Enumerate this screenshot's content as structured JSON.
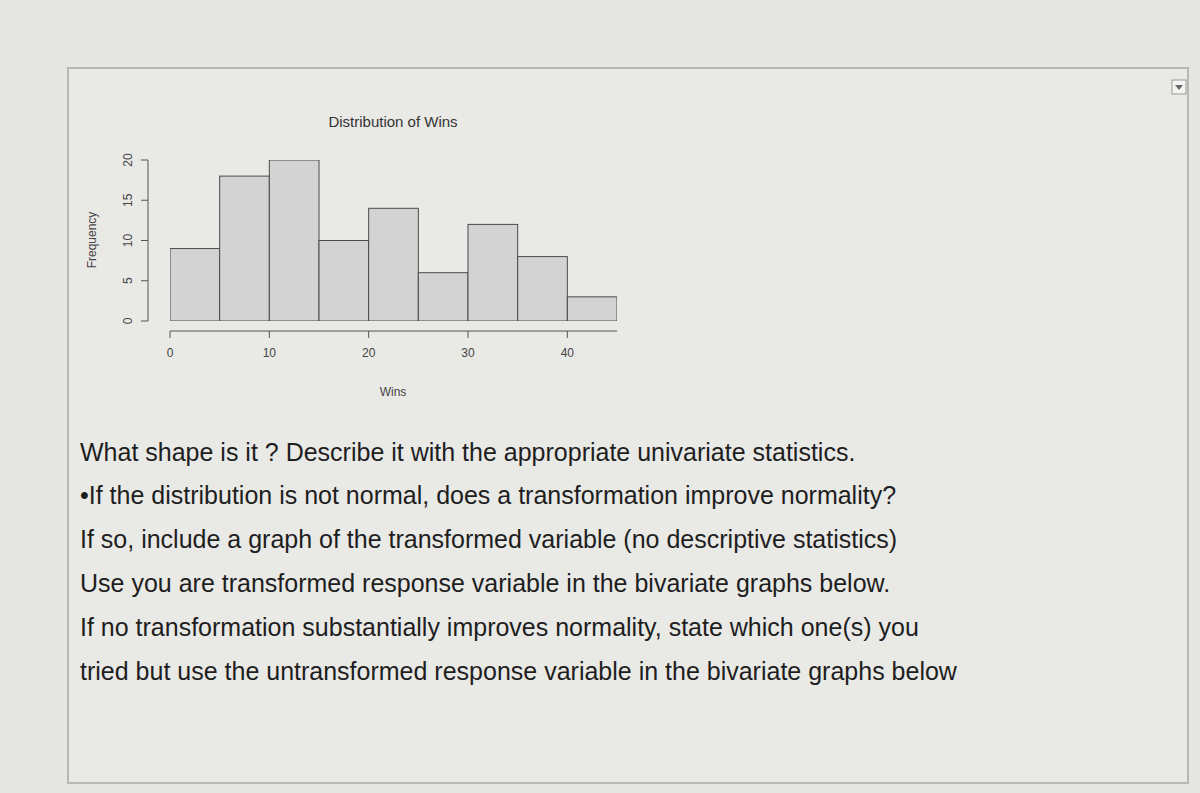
{
  "chart_data": {
    "type": "histogram",
    "title": "Distribution of Wins",
    "x_label": "Wins",
    "y_label": "Frequency",
    "bins": [
      0,
      5,
      10,
      15,
      20,
      25,
      30,
      35,
      40,
      45
    ],
    "counts": [
      9,
      18,
      20,
      10,
      14,
      6,
      12,
      8,
      3
    ],
    "color": "#d3d3d3",
    "xlim": [
      0,
      45
    ],
    "ylim": [
      0,
      20
    ],
    "xticks": [
      0,
      10,
      20,
      30,
      40
    ],
    "yticks": [
      0,
      5,
      10,
      15,
      20
    ],
    "grid": false
  },
  "document": {
    "lines": [
      "What shape is it ? Describe it with the appropriate univariate statistics.",
      "•If the distribution is not normal, does a transformation improve normality?",
      "If so, include a graph of the transformed variable (no descriptive statistics)",
      "Use you are transformed response variable in the bivariate graphs below.",
      "If no transformation substantially improves normality, state which one(s) you",
      "tried but use the untransformed response variable in the bivariate graphs below"
    ]
  }
}
